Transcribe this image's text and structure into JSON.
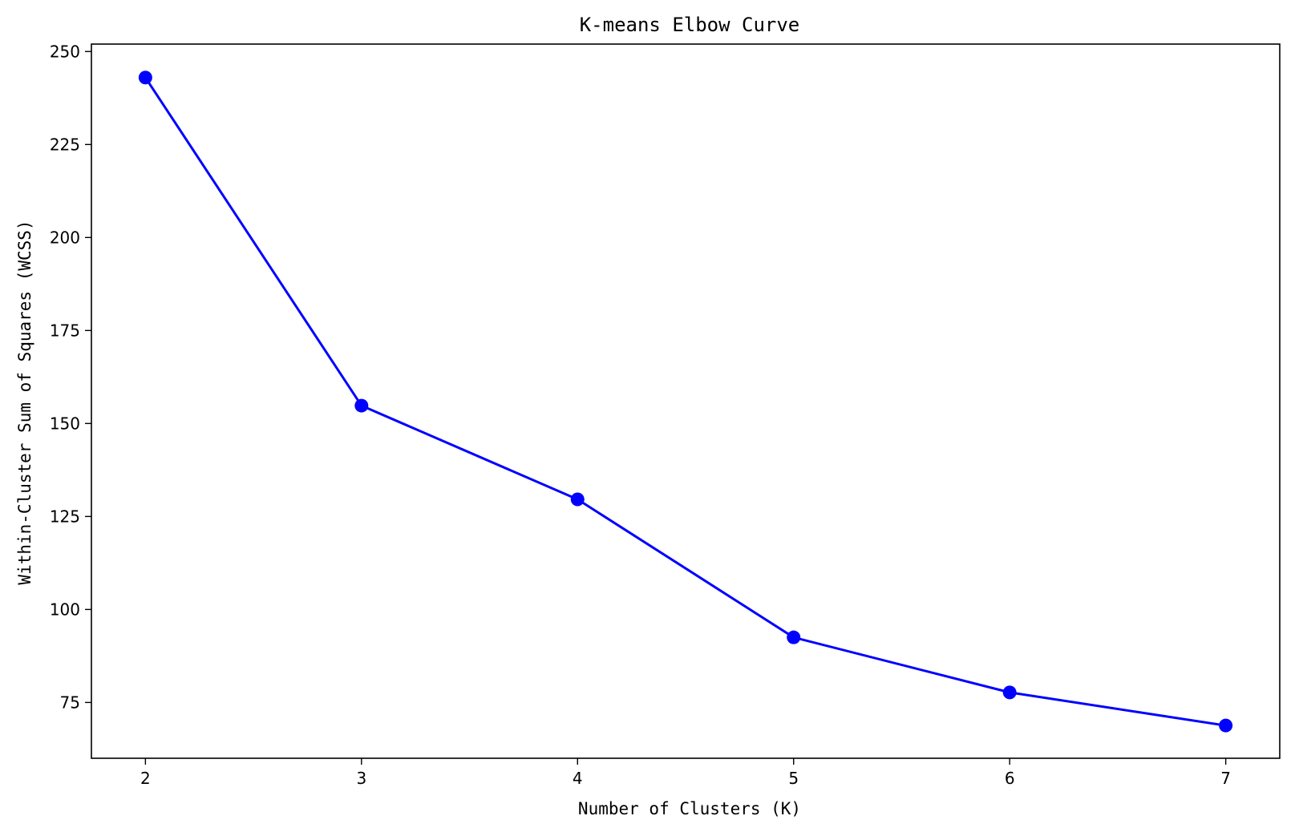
{
  "chart_data": {
    "type": "line",
    "title": "K-means Elbow Curve",
    "xlabel": "Number of Clusters (K)",
    "ylabel": "Within-Cluster Sum of Squares (WCSS)",
    "x": [
      2,
      3,
      4,
      5,
      6,
      7
    ],
    "series": [
      {
        "values": [
          243.0,
          154.8,
          129.6,
          92.5,
          77.7,
          68.8
        ],
        "color": "#0000ff",
        "marker": "circle"
      }
    ],
    "xlim": [
      1.75,
      7.25
    ],
    "ylim": [
      60,
      252
    ],
    "xticks": [
      2,
      3,
      4,
      5,
      6,
      7
    ],
    "yticks": [
      75,
      100,
      125,
      150,
      175,
      200,
      225,
      250
    ],
    "grid": false,
    "legend": "none"
  }
}
